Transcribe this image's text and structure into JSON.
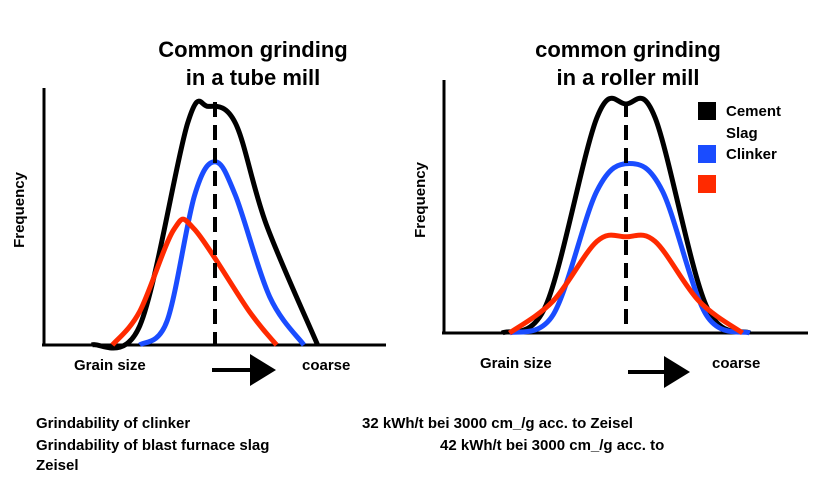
{
  "chart_data": [
    {
      "type": "line",
      "title": [
        "Common grinding",
        "in a tube mill"
      ],
      "ylabel": "Frequency",
      "xlabel": "Grain size",
      "x_end_label": "coarse",
      "x_range": [
        0,
        100
      ],
      "y_range": [
        0,
        100
      ],
      "median_line_x": 50,
      "series": [
        {
          "color": "#000000",
          "points": [
            [
              14,
              0
            ],
            [
              28,
              8
            ],
            [
              42,
              92
            ],
            [
              48,
              99
            ],
            [
              56,
              92
            ],
            [
              65,
              50
            ],
            [
              80,
              0
            ]
          ]
        },
        {
          "color": "#1a4cff",
          "points": [
            [
              28,
              0
            ],
            [
              36,
              10
            ],
            [
              44,
              62
            ],
            [
              50,
              76
            ],
            [
              56,
              62
            ],
            [
              66,
              20
            ],
            [
              76,
              0
            ]
          ]
        },
        {
          "color": "#ff2a00",
          "points": [
            [
              20,
              0
            ],
            [
              28,
              14
            ],
            [
              38,
              48
            ],
            [
              44,
              48
            ],
            [
              60,
              14
            ],
            [
              68,
              0
            ]
          ]
        }
      ]
    },
    {
      "type": "line",
      "title": [
        "common grinding",
        "in a roller mill"
      ],
      "ylabel": "Frequency",
      "xlabel": "Grain size",
      "x_end_label": "coarse",
      "x_range": [
        0,
        100
      ],
      "y_range": [
        0,
        100
      ],
      "median_line_x": 50,
      "legend_position": "top-right",
      "series": [
        {
          "color": "#000000",
          "points": [
            [
              16,
              0
            ],
            [
              28,
              12
            ],
            [
              42,
              94
            ],
            [
              50,
              100
            ],
            [
              58,
              94
            ],
            [
              72,
              12
            ],
            [
              84,
              0
            ]
          ]
        },
        {
          "color": "#1a4cff",
          "points": [
            [
              18,
              0
            ],
            [
              30,
              8
            ],
            [
              42,
              62
            ],
            [
              51,
              74
            ],
            [
              60,
              62
            ],
            [
              72,
              8
            ],
            [
              84,
              0
            ]
          ]
        },
        {
          "color": "#ff2a00",
          "points": [
            [
              18,
              0
            ],
            [
              30,
              14
            ],
            [
              42,
              40
            ],
            [
              50,
              42
            ],
            [
              58,
              40
            ],
            [
              70,
              14
            ],
            [
              82,
              0
            ]
          ]
        }
      ]
    }
  ],
  "legend": [
    {
      "label": "Cement",
      "color": "#000000"
    },
    {
      "label": "Slag",
      "color": ""
    },
    {
      "label": "Clinker",
      "color": "#1a4cff"
    },
    {
      "label": "",
      "color": "#ff2a00"
    }
  ],
  "footnotes": [
    {
      "left": "Grindability of clinker",
      "right": "32 kWh/t bei 3000 cm_/g acc. to Zeisel"
    },
    {
      "left": "Grindability of blast furnace slag",
      "right": "42 kWh/t bei 3000 cm_/g acc. to"
    },
    {
      "left": "Zeisel",
      "right": ""
    }
  ]
}
